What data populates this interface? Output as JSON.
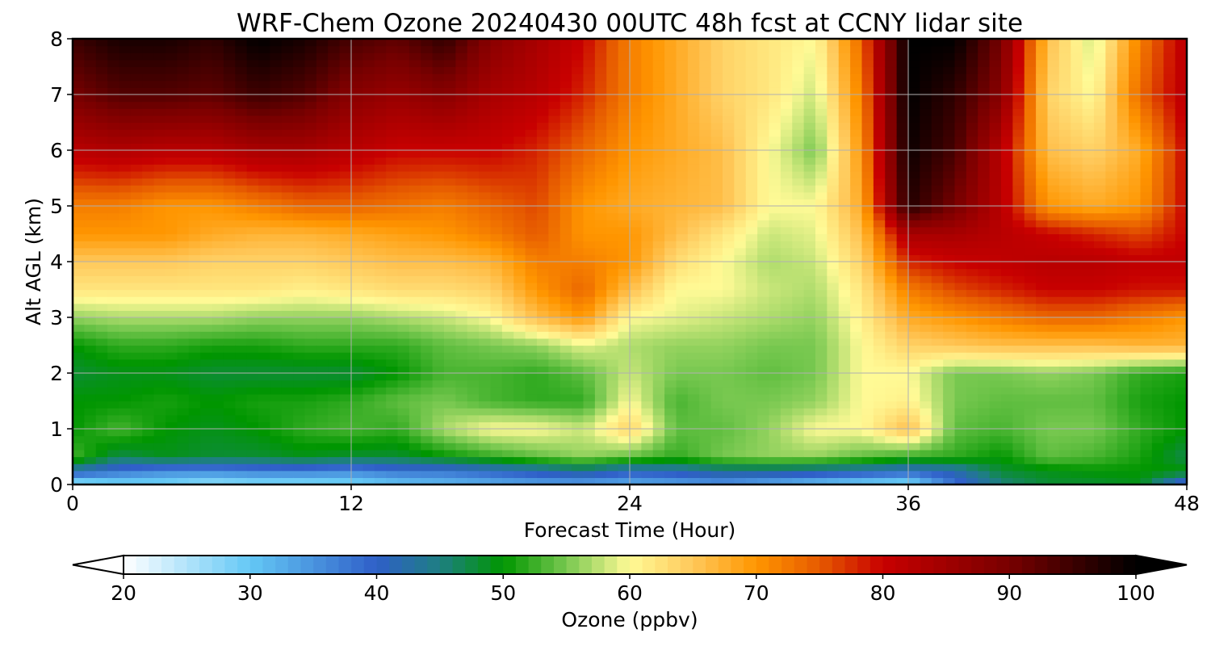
{
  "chart_data": {
    "type": "heatmap",
    "title": "WRF-Chem Ozone  20240430 00UTC 48h fcst at CCNY lidar site",
    "xlabel": "Forecast Time (Hour)",
    "ylabel": "Alt AGL (km)",
    "xlim": [
      0,
      48
    ],
    "ylim": [
      0,
      8
    ],
    "xticks": [
      "0",
      "12",
      "24",
      "36",
      "48"
    ],
    "yticks": [
      "0",
      "1",
      "2",
      "3",
      "4",
      "5",
      "6",
      "7",
      "8"
    ],
    "grid": true,
    "colorbar": {
      "label": "Ozone  (ppbv)",
      "min": 20,
      "max": 100,
      "ticks": [
        "20",
        "30",
        "40",
        "50",
        "60",
        "70",
        "80",
        "90",
        "100"
      ],
      "extend": "both",
      "colors": [
        {
          "v": 20,
          "c": "#ffffff"
        },
        {
          "v": 30,
          "c": "#64c8f5"
        },
        {
          "v": 40,
          "c": "#2f5fc8"
        },
        {
          "v": 45,
          "c": "#1e7f82"
        },
        {
          "v": 50,
          "c": "#009600"
        },
        {
          "v": 55,
          "c": "#78c850"
        },
        {
          "v": 60,
          "c": "#fffa96"
        },
        {
          "v": 65,
          "c": "#ffc85a"
        },
        {
          "v": 70,
          "c": "#ff9600"
        },
        {
          "v": 75,
          "c": "#e65a00"
        },
        {
          "v": 80,
          "c": "#c80000"
        },
        {
          "v": 90,
          "c": "#780000"
        },
        {
          "v": 100,
          "c": "#000000"
        }
      ]
    },
    "hours": [
      0,
      2,
      4,
      6,
      8,
      10,
      12,
      14,
      16,
      18,
      20,
      22,
      24,
      26,
      28,
      30,
      32,
      34,
      36,
      38,
      40,
      42,
      44,
      46,
      48
    ],
    "altitudes_km": [
      0,
      0.25,
      0.5,
      1,
      1.5,
      2,
      2.5,
      3,
      3.5,
      4,
      4.5,
      5,
      6,
      7,
      8
    ],
    "ozone_ppbv": [
      [
        25,
        28,
        28,
        26,
        27,
        27,
        28,
        30,
        31,
        32,
        33,
        33,
        32,
        33,
        34,
        32,
        30,
        28,
        27,
        38,
        45,
        48,
        48,
        49,
        36
      ],
      [
        42,
        38,
        36,
        36,
        37,
        37,
        36,
        38,
        38,
        40,
        42,
        44,
        41,
        42,
        44,
        44,
        43,
        42,
        40,
        42,
        48,
        49,
        50,
        50,
        50
      ],
      [
        53,
        47,
        49,
        48,
        48,
        49,
        48,
        48,
        50,
        52,
        54,
        56,
        54,
        52,
        55,
        56,
        56,
        54,
        52,
        52,
        50,
        54,
        53,
        51,
        47
      ],
      [
        50,
        53,
        50,
        49,
        50,
        52,
        53,
        52,
        57,
        60,
        60,
        58,
        64,
        54,
        54,
        56,
        60,
        60,
        66,
        54,
        53,
        55,
        55,
        52,
        50
      ],
      [
        50,
        50,
        51,
        50,
        51,
        51,
        52,
        54,
        55,
        53,
        52,
        52,
        60,
        53,
        55,
        55,
        56,
        60,
        61,
        55,
        54,
        54,
        54,
        51,
        50
      ],
      [
        48,
        49,
        49,
        48,
        48,
        48,
        48,
        50,
        53,
        53,
        52,
        54,
        58,
        55,
        55,
        54,
        55,
        60,
        60,
        55,
        55,
        56,
        55,
        52,
        51
      ],
      [
        50,
        52,
        52,
        51,
        51,
        52,
        52,
        52,
        54,
        55,
        56,
        59,
        57,
        56,
        56,
        55,
        55,
        60,
        64,
        65,
        66,
        66,
        66,
        67,
        67
      ],
      [
        56,
        57,
        57,
        57,
        56,
        56,
        56,
        57,
        58,
        60,
        66,
        70,
        60,
        59,
        58,
        57,
        56,
        61,
        68,
        70,
        72,
        74,
        74,
        72,
        70
      ],
      [
        62,
        62,
        62,
        62,
        62,
        61,
        62,
        63,
        63,
        64,
        70,
        74,
        66,
        60,
        60,
        58,
        57,
        62,
        72,
        76,
        78,
        80,
        80,
        79,
        79
      ],
      [
        65,
        65,
        65,
        64,
        64,
        64,
        65,
        66,
        66,
        67,
        72,
        72,
        70,
        63,
        60,
        57,
        58,
        64,
        78,
        80,
        81,
        82,
        82,
        81,
        81
      ],
      [
        70,
        70,
        70,
        68,
        67,
        67,
        68,
        69,
        70,
        72,
        75,
        70,
        70,
        66,
        62,
        58,
        59,
        66,
        84,
        84,
        82,
        80,
        78,
        76,
        80
      ],
      [
        72,
        72,
        70,
        70,
        72,
        74,
        74,
        73,
        72,
        74,
        76,
        70,
        68,
        67,
        66,
        60,
        60,
        68,
        97,
        90,
        82,
        70,
        68,
        70,
        80
      ],
      [
        82,
        83,
        82,
        82,
        84,
        84,
        82,
        80,
        80,
        80,
        78,
        74,
        70,
        68,
        66,
        60,
        55,
        70,
        99,
        94,
        82,
        66,
        64,
        68,
        80
      ],
      [
        90,
        93,
        93,
        92,
        95,
        93,
        88,
        86,
        88,
        84,
        82,
        78,
        72,
        68,
        64,
        62,
        58,
        72,
        100,
        96,
        88,
        64,
        60,
        74,
        82
      ],
      [
        95,
        98,
        98,
        96,
        100,
        98,
        94,
        92,
        96,
        88,
        84,
        80,
        72,
        68,
        64,
        62,
        60,
        74,
        100,
        100,
        90,
        66,
        58,
        72,
        82
      ]
    ]
  }
}
